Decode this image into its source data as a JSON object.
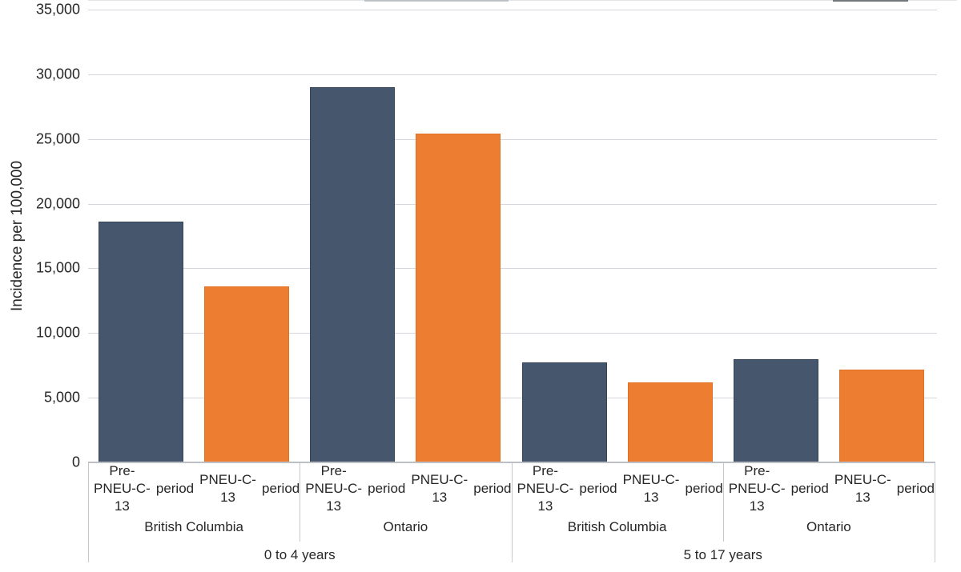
{
  "chart_data": {
    "type": "bar",
    "title": "",
    "xlabel": "",
    "ylabel": "Incidence per 100,000",
    "ylim": [
      0,
      35000
    ],
    "ytick_step": 5000,
    "ytick_labels": [
      "0",
      "5,000",
      "10,000",
      "15,000",
      "20,000",
      "25,000",
      "30,000",
      "35,000"
    ],
    "grid": true,
    "legend": "none",
    "series": [
      {
        "name": "Pre-PNEU-C-13 period",
        "label_lines": [
          "Pre-PNEU-C-13",
          "period"
        ],
        "color": "#46566c"
      },
      {
        "name": "PNEU-C-13 period",
        "label_lines": [
          "PNEU-C-13",
          "period"
        ],
        "color": "#ed7d31"
      }
    ],
    "groups": [
      {
        "age_label": "0 to 4 years",
        "provinces": [
          {
            "label": "British Columbia",
            "values": [
              18600,
              13600
            ]
          },
          {
            "label": "Ontario",
            "values": [
              29000,
              25400
            ]
          }
        ]
      },
      {
        "age_label": "5 to 17 years",
        "provinces": [
          {
            "label": "British Columbia",
            "values": [
              7700,
              6200
            ]
          },
          {
            "label": "Ontario",
            "values": [
              8000,
              7200
            ]
          }
        ]
      }
    ],
    "colors": {
      "pre_period_bar": "#46566c",
      "pneu_c13_bar": "#ed7d31",
      "gridline": "#d3d6db",
      "axis_line": "#bcbfc4",
      "text": "#262626"
    }
  }
}
